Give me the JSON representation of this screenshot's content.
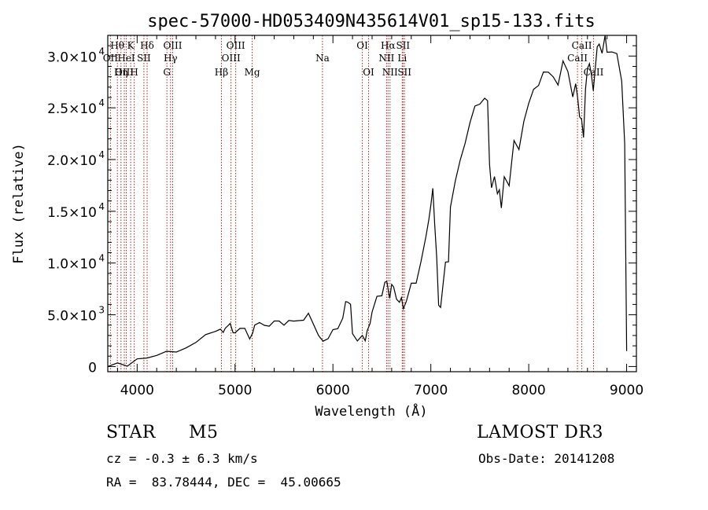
{
  "chart_data": {
    "type": "line",
    "title": "spec-57000-HD053409N435614V01_sp15-133.fits",
    "xlabel": "Wavelength (Å)",
    "ylabel": "Flux (relative)",
    "xlim": [
      3700,
      9100
    ],
    "ylim": [
      -500,
      32000
    ],
    "x_ticks": [
      4000,
      5000,
      6000,
      7000,
      8000,
      9000
    ],
    "x_tick_labels": [
      "4000",
      "5000",
      "6000",
      "7000",
      "8000",
      "9000"
    ],
    "y_ticks": [
      0,
      5000,
      10000,
      15000,
      20000,
      25000,
      30000
    ],
    "y_tick_labels": [
      {
        "mant": "0",
        "exp": ""
      },
      {
        "mant": "5.0×10",
        "exp": "3"
      },
      {
        "mant": "1.0×10",
        "exp": "4"
      },
      {
        "mant": "1.5×10",
        "exp": "4"
      },
      {
        "mant": "2.0×10",
        "exp": "4"
      },
      {
        "mant": "2.5×10",
        "exp": "4"
      },
      {
        "mant": "3.0×10",
        "exp": "4"
      }
    ],
    "series": [
      {
        "name": "flux",
        "x": [
          3700,
          3800,
          3900,
          4000,
          4100,
          4200,
          4300,
          4400,
          4500,
          4600,
          4700,
          4800,
          4850,
          4880,
          4900,
          4950,
          4980,
          5000,
          5050,
          5100,
          5150,
          5180,
          5200,
          5250,
          5300,
          5350,
          5400,
          5450,
          5500,
          5550,
          5600,
          5650,
          5700,
          5750,
          5800,
          5850,
          5870,
          5900,
          5950,
          6000,
          6050,
          6100,
          6130,
          6150,
          6180,
          6200,
          6250,
          6300,
          6330,
          6350,
          6380,
          6400,
          6450,
          6500,
          6530,
          6550,
          6580,
          6600,
          6620,
          6650,
          6680,
          6700,
          6720,
          6750,
          6800,
          6850,
          6900,
          6950,
          6980,
          7000,
          7020,
          7040,
          7060,
          7080,
          7100,
          7130,
          7150,
          7180,
          7200,
          7250,
          7300,
          7350,
          7400,
          7450,
          7500,
          7550,
          7580,
          7600,
          7620,
          7650,
          7680,
          7700,
          7720,
          7750,
          7800,
          7850,
          7900,
          7950,
          8000,
          8050,
          8100,
          8150,
          8200,
          8250,
          8300,
          8350,
          8400,
          8450,
          8480,
          8500,
          8520,
          8540,
          8560,
          8580,
          8600,
          8620,
          8640,
          8660,
          8680,
          8700,
          8720,
          8750,
          8780,
          8800,
          8850,
          8900,
          8950,
          8980,
          9000
        ],
        "y": [
          0,
          100,
          300,
          700,
          900,
          1100,
          1400,
          1600,
          1900,
          2300,
          2800,
          3200,
          3800,
          3000,
          3500,
          4200,
          3000,
          3300,
          3600,
          3800,
          2500,
          3200,
          3900,
          4300,
          4200,
          4000,
          4400,
          4700,
          4200,
          4500,
          4100,
          4300,
          4600,
          5200,
          4300,
          3000,
          2500,
          2200,
          2700,
          3400,
          3600,
          4400,
          6300,
          6400,
          5900,
          3000,
          2600,
          3000,
          2700,
          3700,
          4300,
          5500,
          6600,
          6800,
          8200,
          8000,
          6600,
          8100,
          7800,
          6700,
          6400,
          6900,
          5400,
          6600,
          8300,
          8300,
          10100,
          12700,
          14300,
          15700,
          17300,
          13700,
          10800,
          6200,
          5900,
          8300,
          10300,
          10000,
          15600,
          18200,
          19800,
          21600,
          23800,
          25300,
          25600,
          26000,
          25700,
          19600,
          17300,
          18100,
          16500,
          17300,
          15300,
          18200,
          17300,
          21700,
          20700,
          23900,
          25700,
          26800,
          27300,
          28200,
          28700,
          28200,
          27200,
          29300,
          28600,
          26000,
          27200,
          25700,
          24300,
          23800,
          22400,
          27100,
          28800,
          29300,
          28200,
          26400,
          28900,
          30600,
          31300,
          30100,
          31800,
          30600,
          30700,
          30100,
          27700,
          21700,
          1500
        ]
      }
    ],
    "spectral_lines": [
      {
        "name": "Hθ",
        "x": 3798,
        "row": 0
      },
      {
        "name": "OII",
        "x": 3727,
        "row": 1
      },
      {
        "name": "OIII",
        "x": 3869,
        "row": 2
      },
      {
        "name": "K",
        "x": 3934,
        "row": 0
      },
      {
        "name": "HeI",
        "x": 3889,
        "row": 1
      },
      {
        "name": "Hη",
        "x": 3835,
        "row": 2
      },
      {
        "name": "SII",
        "x": 4069,
        "row": 1
      },
      {
        "name": "H",
        "x": 3970,
        "row": 2
      },
      {
        "name": "Hδ",
        "x": 4102,
        "row": 0
      },
      {
        "name": "OIII",
        "x": 4363,
        "row": 0
      },
      {
        "name": "Hγ",
        "x": 4341,
        "row": 1
      },
      {
        "name": "G",
        "x": 4304,
        "row": 2
      },
      {
        "name": "Hβ",
        "x": 4861,
        "row": 2
      },
      {
        "name": "OIII",
        "x": 5007,
        "row": 0
      },
      {
        "name": "OIII",
        "x": 4959,
        "row": 1
      },
      {
        "name": "Mg",
        "x": 5175,
        "row": 2
      },
      {
        "name": "Na",
        "x": 5893,
        "row": 1
      },
      {
        "name": "OI",
        "x": 6300,
        "row": 0
      },
      {
        "name": "OI",
        "x": 6364,
        "row": 2
      },
      {
        "name": "Hα",
        "x": 6563,
        "row": 0
      },
      {
        "name": "SII",
        "x": 6716,
        "row": 0
      },
      {
        "name": "NII",
        "x": 6548,
        "row": 1
      },
      {
        "name": "Li",
        "x": 6708,
        "row": 1
      },
      {
        "name": "NII",
        "x": 6583,
        "row": 2
      },
      {
        "name": "SII",
        "x": 6731,
        "row": 2
      },
      {
        "name": "CaII",
        "x": 8542,
        "row": 0
      },
      {
        "name": "CaII",
        "x": 8498,
        "row": 1
      },
      {
        "name": "CaII",
        "x": 8662,
        "row": 2
      }
    ]
  },
  "info": {
    "object_class": "STAR",
    "subclass": "M5",
    "survey": "LAMOST DR3",
    "cz": "cz = -0.3 ± 6.3 km/s",
    "obs_date": "Obs-Date: 20141208",
    "coords": "RA =  83.78444, DEC =  45.00665"
  },
  "colors": {
    "line": "#000000",
    "marker": "#b22222",
    "axes": "#000000"
  }
}
